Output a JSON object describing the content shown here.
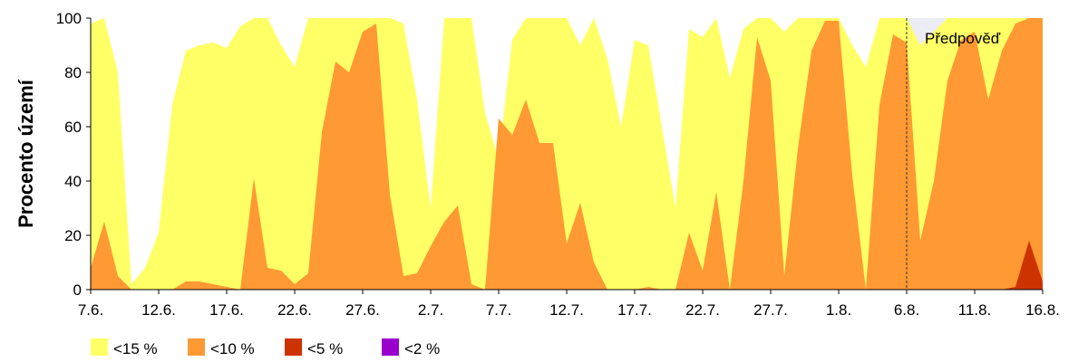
{
  "chart_data": {
    "type": "area",
    "title": "",
    "xlabel": "",
    "ylabel": "Procento území",
    "ylim": [
      0,
      100
    ],
    "yticks": [
      0,
      20,
      40,
      60,
      80,
      100
    ],
    "grid": false,
    "legend_position": "bottom",
    "x_days": [
      "7.6.",
      "8.6.",
      "9.6.",
      "10.6.",
      "11.6.",
      "12.6.",
      "13.6.",
      "14.6.",
      "15.6.",
      "16.6.",
      "17.6.",
      "18.6.",
      "19.6.",
      "20.6.",
      "21.6.",
      "22.6.",
      "23.6.",
      "24.6.",
      "25.6.",
      "26.6.",
      "27.6.",
      "28.6.",
      "29.6.",
      "30.6.",
      "1.7.",
      "2.7.",
      "3.7.",
      "4.7.",
      "5.7.",
      "6.7.",
      "7.7.",
      "8.7.",
      "9.7.",
      "10.7.",
      "11.7.",
      "12.7.",
      "13.7.",
      "14.7.",
      "15.7.",
      "16.7.",
      "17.7.",
      "18.7.",
      "19.7.",
      "20.7.",
      "21.7.",
      "22.7.",
      "23.7.",
      "24.7.",
      "25.7.",
      "26.7.",
      "27.7.",
      "28.7.",
      "29.7.",
      "30.7.",
      "31.7.",
      "1.8.",
      "2.8.",
      "3.8.",
      "4.8.",
      "5.8.",
      "6.8.",
      "7.8.",
      "8.8.",
      "9.8.",
      "10.8.",
      "11.8.",
      "12.8.",
      "13.8.",
      "14.8.",
      "15.8.",
      "16.8."
    ],
    "x_tick_labels": [
      "7.6.",
      "12.6.",
      "17.6.",
      "22.6.",
      "27.6.",
      "2.7.",
      "7.7.",
      "12.7.",
      "17.7.",
      "22.7.",
      "27.7.",
      "1.8.",
      "6.8.",
      "11.8.",
      "16.8."
    ],
    "forecast_start": "6.8.",
    "forecast_label": "Předpověď",
    "series": [
      {
        "name": "<15 %",
        "color": "#ffff66",
        "values": [
          98,
          100,
          80,
          2,
          8,
          21,
          68,
          88,
          90,
          91,
          89,
          97,
          100,
          100,
          90,
          82,
          100,
          100,
          100,
          100,
          100,
          100,
          100,
          98,
          70,
          30,
          100,
          100,
          100,
          65,
          48,
          92,
          100,
          100,
          100,
          100,
          90,
          100,
          85,
          60,
          92,
          90,
          60,
          30,
          96,
          93,
          100,
          78,
          96,
          100,
          100,
          95,
          100,
          100,
          100,
          100,
          90,
          82,
          100,
          100,
          100,
          90,
          95,
          100,
          100,
          100,
          100,
          100,
          100,
          100,
          100
        ]
      },
      {
        "name": "<10 %",
        "color": "#ff9933",
        "values": [
          8,
          25,
          5,
          0,
          0,
          0,
          0,
          3,
          3,
          2,
          1,
          0,
          41,
          8,
          7,
          2,
          6,
          58,
          84,
          80,
          95,
          98,
          35,
          5,
          6,
          16,
          25,
          31,
          2,
          0,
          63,
          57,
          70,
          54,
          54,
          17,
          32,
          10,
          0,
          0,
          0,
          1,
          0,
          0,
          21,
          7,
          36,
          0,
          40,
          93,
          77,
          5,
          52,
          88,
          99,
          99,
          42,
          0,
          68,
          94,
          91,
          18,
          40,
          77,
          92,
          95,
          70,
          88,
          98,
          100,
          100
        ]
      },
      {
        "name": "<5 %",
        "color": "#cc3300",
        "values": [
          0,
          0,
          0,
          0,
          0,
          0,
          0,
          0,
          0,
          0,
          0,
          0,
          0,
          0,
          0,
          0,
          0,
          0,
          0,
          0,
          0,
          0,
          0,
          0,
          0,
          0,
          0,
          0,
          0,
          0,
          0,
          0,
          0,
          0,
          0,
          0,
          0,
          0,
          0,
          0,
          0,
          0,
          0,
          0,
          0,
          0,
          0,
          0,
          0,
          0,
          0,
          0,
          0,
          0,
          0,
          0,
          0,
          0,
          0,
          0,
          0,
          0,
          0,
          0,
          0,
          0,
          0,
          0,
          1,
          18,
          3
        ]
      },
      {
        "name": "<2 %",
        "color": "#9900cc",
        "values": [
          0,
          0,
          0,
          0,
          0,
          0,
          0,
          0,
          0,
          0,
          0,
          0,
          0,
          0,
          0,
          0,
          0,
          0,
          0,
          0,
          0,
          0,
          0,
          0,
          0,
          0,
          0,
          0,
          0,
          0,
          0,
          0,
          0,
          0,
          0,
          0,
          0,
          0,
          0,
          0,
          0,
          0,
          0,
          0,
          0,
          0,
          0,
          0,
          0,
          0,
          0,
          0,
          0,
          0,
          0,
          0,
          0,
          0,
          0,
          0,
          0,
          0,
          0,
          0,
          0,
          0,
          0,
          0,
          0,
          0,
          0
        ]
      }
    ]
  }
}
